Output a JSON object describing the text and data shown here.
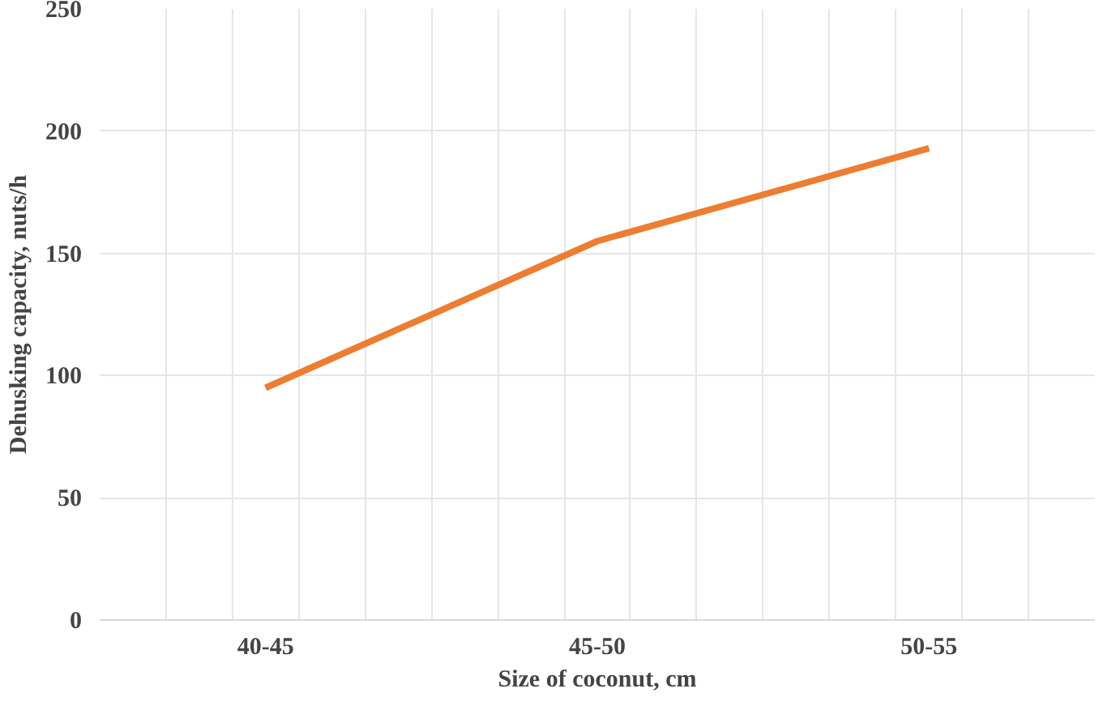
{
  "chart_data": {
    "type": "line",
    "xlabel": "Size of coconut, cm",
    "ylabel": "Dehusking capacity, nuts/h",
    "categories": [
      "40-45",
      "45-50",
      "50-55"
    ],
    "series": [
      {
        "color": "#ed7d31",
        "values": [
          95,
          155,
          193
        ]
      }
    ],
    "ylim": [
      0,
      250
    ],
    "yticks": [
      0,
      50,
      100,
      150,
      200,
      250
    ],
    "grid": true,
    "line_style": "solid"
  }
}
